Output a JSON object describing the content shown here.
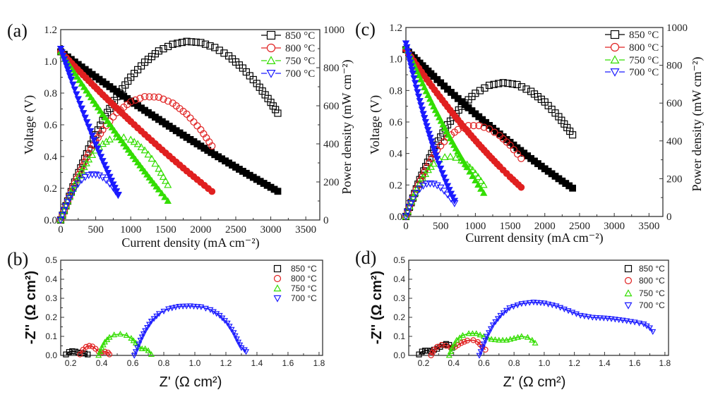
{
  "chart_data": [
    {
      "panel": "(a)",
      "type": "scatter",
      "xlabel": "Current density (mA cm⁻²)",
      "ylabel": "Voltage (V)",
      "y2label": "Power density (mW cm⁻²)",
      "xlim": [
        0,
        3700
      ],
      "ylim": [
        0,
        1.2
      ],
      "y2lim": [
        0,
        1000
      ],
      "xticks": [
        "0",
        "500",
        "1000",
        "1500",
        "2000",
        "2500",
        "3000",
        "3500"
      ],
      "yticks": [
        "0.0",
        "0.2",
        "0.4",
        "0.6",
        "0.8",
        "1.0",
        "1.2"
      ],
      "y2ticks": [
        "0",
        "200",
        "400",
        "600",
        "800",
        "1000"
      ],
      "legend": "top-right",
      "grid": false,
      "series": [
        {
          "name": "850 °C",
          "color": "#000000",
          "marker": "square",
          "current": [
            0,
            200,
            400,
            600,
            800,
            1000,
            1200,
            1400,
            1600,
            1800,
            2000,
            2200,
            2400,
            2600,
            2800,
            3000,
            3100
          ],
          "voltage": [
            1.06,
            0.996,
            0.933,
            0.871,
            0.81,
            0.75,
            0.691,
            0.634,
            0.577,
            0.521,
            0.466,
            0.412,
            0.359,
            0.307,
            0.256,
            0.206,
            0.181
          ],
          "power": [
            0,
            199,
            373,
            523,
            648,
            750,
            829,
            888,
            923,
            938,
            932,
            906,
            862,
            798,
            717,
            618,
            561
          ]
        },
        {
          "name": "800 °C",
          "color": "#e02020",
          "marker": "circle",
          "current": [
            0,
            200,
            400,
            600,
            800,
            1000,
            1200,
            1400,
            1600,
            1800,
            2000,
            2160
          ],
          "voltage": [
            1.06,
            0.968,
            0.878,
            0.79,
            0.705,
            0.621,
            0.54,
            0.461,
            0.384,
            0.309,
            0.237,
            0.18
          ],
          "power": [
            0,
            194,
            351,
            474,
            564,
            621,
            648,
            645,
            614,
            556,
            474,
            389
          ]
        },
        {
          "name": "750 °C",
          "color": "#33dd00",
          "marker": "triangle-up",
          "current": [
            0,
            100,
            200,
            300,
            400,
            500,
            600,
            700,
            800,
            900,
            1000,
            1100,
            1200,
            1300,
            1400,
            1530
          ],
          "voltage": [
            1.06,
            0.992,
            0.925,
            0.859,
            0.794,
            0.73,
            0.666,
            0.604,
            0.542,
            0.482,
            0.422,
            0.363,
            0.305,
            0.248,
            0.192,
            0.12
          ],
          "power": [
            0,
            99,
            185,
            258,
            318,
            365,
            400,
            423,
            434,
            434,
            422,
            399,
            366,
            322,
            269,
            184
          ]
        },
        {
          "name": "700 °C",
          "color": "#1a1aff",
          "marker": "triangle-down",
          "current": [
            0,
            50,
            100,
            150,
            200,
            250,
            300,
            350,
            400,
            450,
            500,
            550,
            600,
            650,
            700,
            750,
            820
          ],
          "voltage": [
            1.08,
            1.014,
            0.95,
            0.886,
            0.824,
            0.763,
            0.704,
            0.646,
            0.589,
            0.533,
            0.478,
            0.425,
            0.373,
            0.323,
            0.273,
            0.225,
            0.16
          ],
          "power": [
            0,
            51,
            95,
            133,
            165,
            191,
            211,
            226,
            236,
            240,
            239,
            234,
            224,
            210,
            191,
            169,
            131
          ]
        }
      ]
    },
    {
      "panel": "(b)",
      "type": "scatter",
      "xlabel": "Z' (Ω cm²)",
      "ylabel": "-Z'' (Ω cm²)",
      "xlim": [
        0.136,
        1.823
      ],
      "ylim": [
        0,
        0.5
      ],
      "xticks": [
        "0.2",
        "0.4",
        "0.6",
        "0.8",
        "1.0",
        "1.2",
        "1.4",
        "1.6",
        "1.8"
      ],
      "yticks": [
        "0.0",
        "0.1",
        "0.2",
        "0.3",
        "0.4",
        "0.5"
      ],
      "legend": "top-right",
      "grid": false,
      "fit_lines": true,
      "series": [
        {
          "name": "850 °C",
          "color": "#000000",
          "marker": "square",
          "z_real": [
            0.17,
            0.19,
            0.21,
            0.23,
            0.25,
            0.27,
            0.29,
            0.31
          ],
          "z_imag": [
            0.005,
            0.018,
            0.022,
            0.02,
            0.015,
            0.012,
            0.01,
            0.005
          ]
        },
        {
          "name": "800 °C",
          "color": "#e02020",
          "marker": "circle",
          "z_real": [
            0.26,
            0.28,
            0.3,
            0.32,
            0.34,
            0.36,
            0.38,
            0.4,
            0.42,
            0.44,
            0.45
          ],
          "z_imag": [
            0.005,
            0.03,
            0.045,
            0.05,
            0.047,
            0.035,
            0.02,
            0.015,
            0.02,
            0.015,
            0.005
          ]
        },
        {
          "name": "750 °C",
          "color": "#33dd00",
          "marker": "triangle-up",
          "z_real": [
            0.38,
            0.4,
            0.42,
            0.45,
            0.48,
            0.52,
            0.56,
            0.59,
            0.62,
            0.64,
            0.66,
            0.68,
            0.7,
            0.72
          ],
          "z_imag": [
            0.0,
            0.04,
            0.07,
            0.095,
            0.108,
            0.112,
            0.105,
            0.09,
            0.065,
            0.045,
            0.035,
            0.035,
            0.025,
            0.005
          ]
        },
        {
          "name": "700 °C",
          "color": "#1a1aff",
          "marker": "triangle-down",
          "z_real": [
            0.61,
            0.63,
            0.65,
            0.68,
            0.72,
            0.77,
            0.83,
            0.9,
            0.97,
            1.04,
            1.1,
            1.16,
            1.21,
            1.25,
            1.28,
            1.3,
            1.32,
            1.33
          ],
          "z_imag": [
            0.0,
            0.04,
            0.08,
            0.13,
            0.18,
            0.22,
            0.245,
            0.258,
            0.26,
            0.255,
            0.24,
            0.21,
            0.17,
            0.12,
            0.07,
            0.04,
            0.03,
            0.02
          ]
        }
      ]
    },
    {
      "panel": "(c)",
      "type": "scatter",
      "xlabel": "Current density (mA cm⁻²)",
      "ylabel": "Voltage (V)",
      "y2label": "Power density (mW cm⁻²)",
      "xlim": [
        0,
        3700
      ],
      "ylim": [
        0,
        1.2
      ],
      "y2lim": [
        0,
        1000
      ],
      "xticks": [
        "0",
        "500",
        "1000",
        "1500",
        "2000",
        "2500",
        "3000",
        "3500"
      ],
      "yticks": [
        "0.0",
        "0.2",
        "0.4",
        "0.6",
        "0.8",
        "1.0",
        "1.2"
      ],
      "y2ticks": [
        "0",
        "200",
        "400",
        "600",
        "800",
        "1000"
      ],
      "legend": "top-right",
      "grid": false,
      "series": [
        {
          "name": "850 °C",
          "color": "#000000",
          "marker": "square",
          "current": [
            0,
            200,
            400,
            600,
            800,
            1000,
            1200,
            1400,
            1600,
            1800,
            2000,
            2200,
            2400
          ],
          "voltage": [
            1.06,
            0.974,
            0.89,
            0.808,
            0.729,
            0.652,
            0.578,
            0.506,
            0.436,
            0.368,
            0.303,
            0.24,
            0.18
          ],
          "power": [
            0,
            195,
            356,
            485,
            583,
            652,
            694,
            708,
            698,
            662,
            606,
            528,
            432
          ]
        },
        {
          "name": "800 °C",
          "color": "#e02020",
          "marker": "circle",
          "current": [
            0,
            150,
            300,
            450,
            600,
            750,
            900,
            1050,
            1200,
            1350,
            1500,
            1660
          ],
          "voltage": [
            1.06,
            0.964,
            0.871,
            0.782,
            0.696,
            0.613,
            0.534,
            0.458,
            0.386,
            0.317,
            0.251,
            0.185
          ],
          "power": [
            0,
            145,
            261,
            352,
            418,
            460,
            481,
            481,
            463,
            428,
            377,
            307
          ]
        },
        {
          "name": "750 °C",
          "color": "#33dd00",
          "marker": "triangle-up",
          "current": [
            0,
            80,
            160,
            240,
            320,
            400,
            480,
            560,
            640,
            720,
            800,
            880,
            960,
            1040,
            1120
          ],
          "voltage": [
            1.08,
            0.999,
            0.921,
            0.844,
            0.77,
            0.698,
            0.629,
            0.561,
            0.496,
            0.432,
            0.371,
            0.313,
            0.256,
            0.201,
            0.149
          ],
          "power": [
            0,
            80,
            147,
            203,
            246,
            279,
            302,
            314,
            317,
            311,
            297,
            275,
            246,
            209,
            167
          ]
        },
        {
          "name": "700 °C",
          "color": "#1a1aff",
          "marker": "triangle-down",
          "current": [
            0,
            50,
            100,
            150,
            200,
            250,
            300,
            350,
            400,
            450,
            500,
            550,
            600,
            650,
            700
          ],
          "voltage": [
            1.1,
            1.002,
            0.909,
            0.819,
            0.734,
            0.652,
            0.575,
            0.501,
            0.432,
            0.366,
            0.305,
            0.248,
            0.194,
            0.145,
            0.1
          ],
          "power": [
            0,
            50,
            91,
            123,
            147,
            163,
            173,
            175,
            173,
            165,
            153,
            136,
            116,
            94,
            70
          ]
        }
      ]
    },
    {
      "panel": "(d)",
      "type": "scatter",
      "xlabel": "Z' (Ω cm²)",
      "ylabel": "-Z'' (Ω cm²)",
      "xlim": [
        0.102,
        1.824
      ],
      "ylim": [
        0,
        0.5
      ],
      "xticks": [
        "0.2",
        "0.4",
        "0.6",
        "0.8",
        "1.0",
        "1.2",
        "1.4",
        "1.6",
        "1.8"
      ],
      "yticks": [
        "0.0",
        "0.1",
        "0.2",
        "0.3",
        "0.4",
        "0.5"
      ],
      "legend": "top-right",
      "grid": false,
      "fit_lines": true,
      "series": [
        {
          "name": "850 °C",
          "color": "#000000",
          "marker": "square",
          "z_real": [
            0.17,
            0.19,
            0.21,
            0.23,
            0.25,
            0.27,
            0.29,
            0.31,
            0.33,
            0.35,
            0.37,
            0.39
          ],
          "z_imag": [
            0.005,
            0.02,
            0.025,
            0.025,
            0.02,
            0.03,
            0.035,
            0.045,
            0.055,
            0.06,
            0.055,
            0.04
          ]
        },
        {
          "name": "800 °C",
          "color": "#e02020",
          "marker": "circle",
          "z_real": [
            0.25,
            0.27,
            0.29,
            0.32,
            0.35,
            0.38,
            0.41,
            0.45,
            0.49,
            0.53,
            0.56,
            0.59,
            0.61
          ],
          "z_imag": [
            0.0,
            0.03,
            0.045,
            0.055,
            0.05,
            0.04,
            0.045,
            0.065,
            0.078,
            0.08,
            0.07,
            0.045,
            0.03
          ]
        },
        {
          "name": "750 °C",
          "color": "#33dd00",
          "marker": "triangle-up",
          "z_real": [
            0.37,
            0.39,
            0.42,
            0.46,
            0.5,
            0.55,
            0.6,
            0.65,
            0.7,
            0.75,
            0.8,
            0.85,
            0.89,
            0.92,
            0.94
          ],
          "z_imag": [
            0.0,
            0.04,
            0.08,
            0.105,
            0.115,
            0.115,
            0.1,
            0.085,
            0.08,
            0.08,
            0.09,
            0.1,
            0.095,
            0.08,
            0.065
          ]
        },
        {
          "name": "700 °C",
          "color": "#1a1aff",
          "marker": "triangle-down",
          "z_real": [
            0.57,
            0.59,
            0.62,
            0.66,
            0.71,
            0.77,
            0.85,
            0.93,
            1.0,
            1.08,
            1.16,
            1.24,
            1.32,
            1.42,
            1.52,
            1.6,
            1.66,
            1.7,
            1.72
          ],
          "z_imag": [
            0.0,
            0.04,
            0.1,
            0.16,
            0.21,
            0.25,
            0.272,
            0.28,
            0.275,
            0.26,
            0.235,
            0.21,
            0.2,
            0.195,
            0.185,
            0.175,
            0.165,
            0.145,
            0.125
          ]
        }
      ]
    }
  ]
}
